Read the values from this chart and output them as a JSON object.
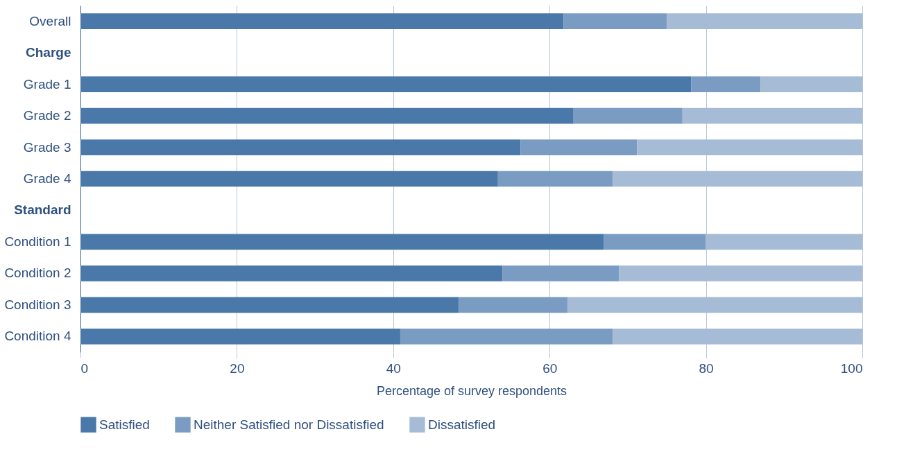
{
  "chart_data": {
    "type": "bar",
    "orientation": "horizontal",
    "stacked": true,
    "categories": [
      "Overall",
      "Charge",
      "Grade 1",
      "Grade 2",
      "Grade 3",
      "Grade 4",
      "Standard",
      "Condition 1",
      "Condition 2",
      "Condition 3",
      "Condition 4"
    ],
    "series": [
      {
        "name": "Satisfied",
        "color": "#4a78a8",
        "values": [
          61.8,
          null,
          78.1,
          63.0,
          56.3,
          53.4,
          null,
          66.9,
          54.0,
          48.4,
          40.9
        ]
      },
      {
        "name": "Neither Satisfied nor Dissatisfied",
        "color": "#7a9cc2",
        "values": [
          13.2,
          null,
          8.9,
          14.0,
          14.9,
          14.7,
          null,
          13.1,
          14.9,
          13.9,
          27.2
        ]
      },
      {
        "name": "Dissatisfied",
        "color": "#a6bbd5",
        "values": [
          25.0,
          null,
          13.0,
          23.0,
          28.8,
          31.9,
          null,
          20.0,
          31.1,
          37.7,
          31.9
        ]
      }
    ],
    "xlim": [
      0,
      100
    ],
    "xticks": [
      0,
      20,
      40,
      60,
      80,
      100
    ],
    "xlabel": "Percentage of survey respondents",
    "grid": "x",
    "legend": "bottom"
  }
}
